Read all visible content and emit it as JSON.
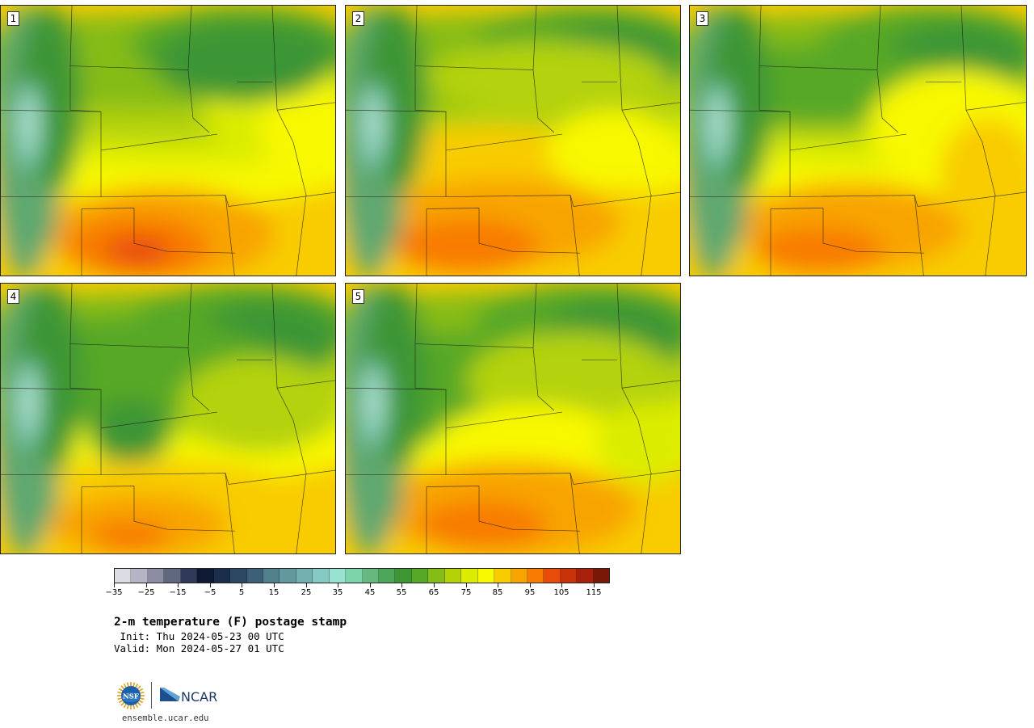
{
  "panels": [
    {
      "label": "1",
      "variant": 1
    },
    {
      "label": "2",
      "variant": 2
    },
    {
      "label": "3",
      "variant": 3
    },
    {
      "label": "4",
      "variant": 4
    },
    {
      "label": "5",
      "variant": 5
    }
  ],
  "colorbar": {
    "colors": [
      "#dcdce4",
      "#b4b4c4",
      "#8c8ca2",
      "#606880",
      "#2e3a58",
      "#0e1a34",
      "#1a2e4a",
      "#2c4862",
      "#3e5f78",
      "#52808a",
      "#62989e",
      "#74b0b0",
      "#86c8c2",
      "#98e2d2",
      "#7ed4aa",
      "#64b880",
      "#4ea65a",
      "#3e9634",
      "#56a826",
      "#86bc18",
      "#b4d208",
      "#dcec00",
      "#f8f800",
      "#f8cc00",
      "#f8a400",
      "#f87c00",
      "#e84c0a",
      "#c83208",
      "#a8200c",
      "#7a1808"
    ],
    "tick_labels": [
      "−35",
      "−25",
      "−15",
      "−5",
      "5",
      "15",
      "25",
      "35",
      "45",
      "55",
      "65",
      "75",
      "85",
      "95",
      "105",
      "115"
    ]
  },
  "title": "2-m temperature (F) postage stamp",
  "init": " Init: Thu 2024-05-23 00 UTC",
  "valid": "Valid: Mon 2024-05-27 01 UTC",
  "logos": {
    "nsf": "NSF",
    "ncar": "NCAR"
  },
  "website": "ensemble.ucar.edu"
}
